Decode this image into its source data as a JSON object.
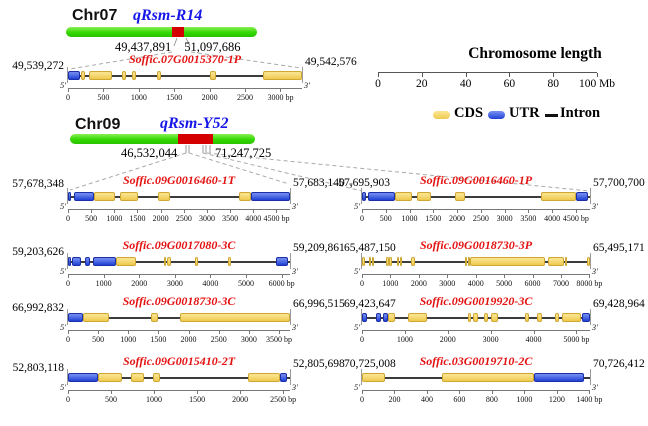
{
  "figure": {
    "chr07": {
      "label": "Chr07",
      "qtl": "qRsm-R14",
      "region_start": "49,437,891",
      "region_end": "51,097,686"
    },
    "chr09": {
      "label": "Chr09",
      "qtl": "qRsm-Y52",
      "region_start": "46,532,044",
      "region_end": "71,247,725"
    },
    "scale": {
      "title": "Chromosome length",
      "ticks": [
        0,
        20,
        40,
        60,
        80,
        100
      ],
      "max": 100,
      "unit": "Mb"
    },
    "legend": {
      "cds": "CDS",
      "utr": "UTR",
      "intron": "Intron"
    },
    "five_prime": "5'",
    "three_prime": "3'",
    "row1_separator": "-",
    "colors": {
      "chromosome_green": "#33d801",
      "qtl_red": "#d40000",
      "cds_yellow": "#eec94e",
      "utr_blue": "#2040d5",
      "gene_name_red": "#e51212",
      "qtl_label_blue": "#1616e8"
    }
  },
  "genes": [
    {
      "name": "Soffic.07G0015370-1P",
      "start_label": "49,539,272",
      "end_label": "49,542,576",
      "length_bp": 3304,
      "unit": "bp",
      "ticks": [
        0,
        500,
        1000,
        1500,
        2000,
        2500,
        3000
      ],
      "segments": [
        {
          "type": "utr",
          "start": 0,
          "end": 170
        },
        {
          "type": "cds",
          "start": 180,
          "end": 235
        },
        {
          "type": "cds",
          "start": 295,
          "end": 615
        },
        {
          "type": "cds",
          "start": 765,
          "end": 815
        },
        {
          "type": "cds",
          "start": 905,
          "end": 955
        },
        {
          "type": "cds",
          "start": 1255,
          "end": 1315
        },
        {
          "type": "cds",
          "start": 2000,
          "end": 2085
        },
        {
          "type": "cds",
          "start": 2760,
          "end": 3304
        }
      ]
    },
    {
      "name": "Soffic.09G0016460-1T",
      "start_label": "57,678,348",
      "end_label": "57,683,140",
      "length_bp": 4792,
      "unit": "bp",
      "ticks": [
        0,
        500,
        1000,
        1500,
        2000,
        2500,
        3000,
        3500,
        4000,
        4500
      ],
      "segments": [
        {
          "type": "utr",
          "start": 0,
          "end": 60
        },
        {
          "type": "utr",
          "start": 130,
          "end": 570
        },
        {
          "type": "cds",
          "start": 570,
          "end": 1010
        },
        {
          "type": "cds",
          "start": 1130,
          "end": 1510
        },
        {
          "type": "cds",
          "start": 1950,
          "end": 2200
        },
        {
          "type": "cds",
          "start": 3690,
          "end": 3960
        },
        {
          "type": "utr",
          "start": 3960,
          "end": 4792
        }
      ]
    },
    {
      "name": "Soffic.09G0016460-1P",
      "start_label": "57,695,903",
      "end_label": "57,700,700",
      "length_bp": 4797,
      "unit": "bp",
      "ticks": [
        0,
        500,
        1000,
        1500,
        2000,
        2500,
        3000,
        3500,
        4000,
        4500
      ],
      "segments": [
        {
          "type": "utr",
          "start": 0,
          "end": 80
        },
        {
          "type": "utr",
          "start": 130,
          "end": 700
        },
        {
          "type": "cds",
          "start": 700,
          "end": 1060
        },
        {
          "type": "cds",
          "start": 1160,
          "end": 1450
        },
        {
          "type": "cds",
          "start": 1960,
          "end": 2160
        },
        {
          "type": "cds",
          "start": 3760,
          "end": 4500
        },
        {
          "type": "utr",
          "start": 4500,
          "end": 4750
        }
      ]
    },
    {
      "name": "Soffic.09G0017080-3C",
      "start_label": "59,203,626",
      "end_label": "59,209,861",
      "length_bp": 6235,
      "unit": "bp",
      "ticks": [
        0,
        1000,
        2000,
        3000,
        4000,
        5000,
        6000
      ],
      "segments": [
        {
          "type": "utr",
          "start": 0,
          "end": 80
        },
        {
          "type": "utr",
          "start": 120,
          "end": 360
        },
        {
          "type": "utr",
          "start": 480,
          "end": 630
        },
        {
          "type": "utr",
          "start": 700,
          "end": 1350
        },
        {
          "type": "cds",
          "start": 1350,
          "end": 1900
        },
        {
          "type": "cds",
          "start": 2690,
          "end": 2735
        },
        {
          "type": "cds",
          "start": 2790,
          "end": 2880
        },
        {
          "type": "cds",
          "start": 3570,
          "end": 3660
        },
        {
          "type": "cds",
          "start": 4500,
          "end": 4590
        },
        {
          "type": "utr",
          "start": 5850,
          "end": 6180
        }
      ]
    },
    {
      "name": "Soffic.09G0018730-3P",
      "start_label": "65,487,150",
      "end_label": "65,495,171",
      "length_bp": 8021,
      "unit": "bp",
      "ticks": [
        0,
        1000,
        2000,
        3000,
        4000,
        5000,
        6000,
        7000,
        8000
      ],
      "segments": [
        {
          "type": "cds",
          "start": 0,
          "end": 120
        },
        {
          "type": "cds",
          "start": 230,
          "end": 320
        },
        {
          "type": "cds",
          "start": 345,
          "end": 425
        },
        {
          "type": "cds",
          "start": 850,
          "end": 935
        },
        {
          "type": "cds",
          "start": 965,
          "end": 1045
        },
        {
          "type": "cds",
          "start": 1230,
          "end": 1315
        },
        {
          "type": "cds",
          "start": 1345,
          "end": 1425
        },
        {
          "type": "cds",
          "start": 1740,
          "end": 1860
        },
        {
          "type": "cds",
          "start": 3630,
          "end": 3700
        },
        {
          "type": "cds",
          "start": 3725,
          "end": 3790
        },
        {
          "type": "cds",
          "start": 3810,
          "end": 6450
        },
        {
          "type": "cds",
          "start": 6560,
          "end": 7100
        },
        {
          "type": "cds",
          "start": 7140,
          "end": 7210
        },
        {
          "type": "cds",
          "start": 7915,
          "end": 8021
        }
      ]
    },
    {
      "name": "Soffic.09G0018730-3C",
      "start_label": "66,992,832",
      "end_label": "66,996,515",
      "length_bp": 3683,
      "unit": "bp",
      "ticks": [
        0,
        500,
        1000,
        1500,
        2000,
        2500,
        3000,
        3500
      ],
      "segments": [
        {
          "type": "utr",
          "start": 0,
          "end": 250
        },
        {
          "type": "cds",
          "start": 250,
          "end": 680
        },
        {
          "type": "cds",
          "start": 1380,
          "end": 1490
        },
        {
          "type": "cds",
          "start": 1850,
          "end": 3683
        }
      ]
    },
    {
      "name": "Soffic.09G0019920-3C",
      "start_label": "69,423,647",
      "end_label": "69,428,964",
      "length_bp": 5317,
      "unit": "bp",
      "ticks": [
        0,
        1000,
        2000,
        3000,
        4000,
        5000
      ],
      "segments": [
        {
          "type": "utr",
          "start": 0,
          "end": 110
        },
        {
          "type": "utr",
          "start": 330,
          "end": 450
        },
        {
          "type": "utr",
          "start": 490,
          "end": 610
        },
        {
          "type": "cds",
          "start": 610,
          "end": 770
        },
        {
          "type": "cds",
          "start": 1080,
          "end": 1520
        },
        {
          "type": "cds",
          "start": 2480,
          "end": 2540
        },
        {
          "type": "cds",
          "start": 2590,
          "end": 2700
        },
        {
          "type": "cds",
          "start": 2840,
          "end": 2950
        },
        {
          "type": "cds",
          "start": 3000,
          "end": 3160
        },
        {
          "type": "cds",
          "start": 3790,
          "end": 3900
        },
        {
          "type": "cds",
          "start": 4080,
          "end": 4200
        },
        {
          "type": "cds",
          "start": 4510,
          "end": 4590
        },
        {
          "type": "cds",
          "start": 4660,
          "end": 5100
        },
        {
          "type": "utr",
          "start": 5130,
          "end": 5317
        }
      ]
    },
    {
      "name": "Soffic.09G0015410-2T",
      "start_label": "52,803,118",
      "end_label": "52,805,698",
      "length_bp": 2580,
      "unit": "bp",
      "ticks": [
        0,
        500,
        1000,
        1500,
        2000,
        2500
      ],
      "segments": [
        {
          "type": "utr",
          "start": 0,
          "end": 350
        },
        {
          "type": "cds",
          "start": 350,
          "end": 630
        },
        {
          "type": "cds",
          "start": 730,
          "end": 880
        },
        {
          "type": "cds",
          "start": 990,
          "end": 1070
        },
        {
          "type": "cds",
          "start": 2090,
          "end": 2460
        },
        {
          "type": "utr",
          "start": 2460,
          "end": 2545
        }
      ]
    },
    {
      "name": "Soffic.03G0019710-2C",
      "start_label": "70,725,008",
      "end_label": "70,726,412",
      "length_bp": 1404,
      "unit": "bp",
      "ticks": [
        0,
        200,
        400,
        600,
        800,
        1000,
        1200,
        1400
      ],
      "segments": [
        {
          "type": "cds",
          "start": 0,
          "end": 140
        },
        {
          "type": "cds",
          "start": 490,
          "end": 1060
        },
        {
          "type": "utr",
          "start": 1060,
          "end": 1370
        }
      ]
    }
  ]
}
